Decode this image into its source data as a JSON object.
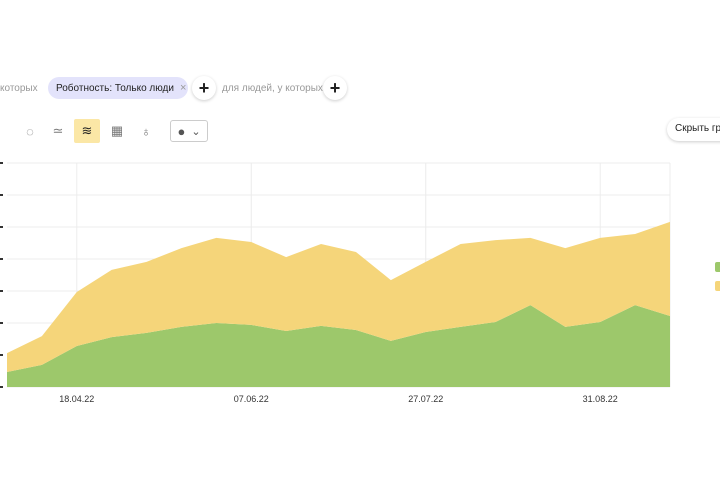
{
  "filters": {
    "prefix_text": "которых",
    "chip_label": "Роботность: Только люди",
    "chip_remove": "×",
    "add": "+",
    "people_text": "для людей, у которых"
  },
  "toolbar": {
    "icons": [
      "pie-chart-icon",
      "line-chart-icon",
      "stacked-area-icon",
      "bar-chart-icon",
      "map-pin-icon"
    ],
    "selected": "stacked-area-icon",
    "comment_dropdown_icon": "speech-bubble-icon"
  },
  "hide_button": "Скрыть гр",
  "colors": {
    "green": "#9dc86b",
    "yellow": "#f5d57a",
    "grid": "#ececec",
    "selected": "#fbe7a6"
  },
  "chart_data": {
    "type": "area",
    "stacked": true,
    "grid": true,
    "x_count": 20,
    "x_ticks": [
      {
        "index": 2,
        "label": "18.04.22"
      },
      {
        "index": 7,
        "label": "07.06.22"
      },
      {
        "index": 12,
        "label": "27.07.22"
      },
      {
        "index": 17,
        "label": "31.08.22"
      }
    ],
    "ylim": [
      0,
      7
    ],
    "series": [
      {
        "color": "#9dc86b",
        "values": [
          0.47,
          0.69,
          1.28,
          1.56,
          1.69,
          1.88,
          2.0,
          1.94,
          1.75,
          1.91,
          1.78,
          1.44,
          1.72,
          1.88,
          2.03,
          2.56,
          1.88,
          2.03,
          2.56,
          2.22
        ]
      },
      {
        "color": "#f5d57a",
        "values": [
          0.59,
          0.9,
          1.69,
          2.1,
          2.22,
          2.46,
          2.66,
          2.59,
          2.31,
          2.56,
          2.44,
          1.9,
          2.19,
          2.59,
          2.56,
          2.1,
          2.46,
          2.63,
          2.22,
          2.94
        ]
      }
    ],
    "legend": "right"
  }
}
